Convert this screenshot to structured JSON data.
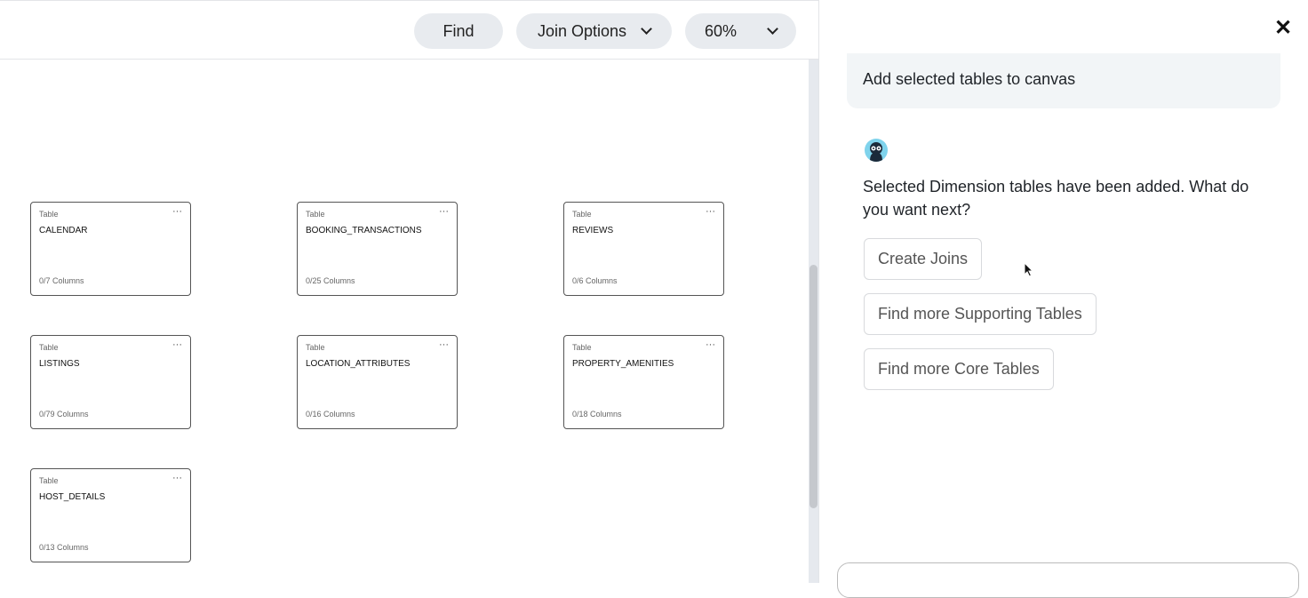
{
  "toolbar": {
    "find": "Find",
    "join_options": "Join Options",
    "zoom": "60%"
  },
  "tables": [
    {
      "type": "Table",
      "name": "CALENDAR",
      "columns": "0/7 Columns"
    },
    {
      "type": "Table",
      "name": "BOOKING_TRANSACTIONS",
      "columns": "0/25 Columns"
    },
    {
      "type": "Table",
      "name": "REVIEWS",
      "columns": "0/6 Columns"
    },
    {
      "type": "Table",
      "name": "LISTINGS",
      "columns": "0/79 Columns"
    },
    {
      "type": "Table",
      "name": "LOCATION_ATTRIBUTES",
      "columns": "0/16 Columns"
    },
    {
      "type": "Table",
      "name": "PROPERTY_AMENITIES",
      "columns": "0/18 Columns"
    },
    {
      "type": "Table",
      "name": "HOST_DETAILS",
      "columns": "0/13 Columns"
    }
  ],
  "chat": {
    "close": "✕",
    "user_message": "Add selected tables to canvas",
    "bot_message": "Selected Dimension tables have been added. What do you want next?",
    "options": [
      "Create Joins",
      "Find more Supporting Tables",
      "Find more Core Tables"
    ],
    "input_placeholder": ""
  }
}
